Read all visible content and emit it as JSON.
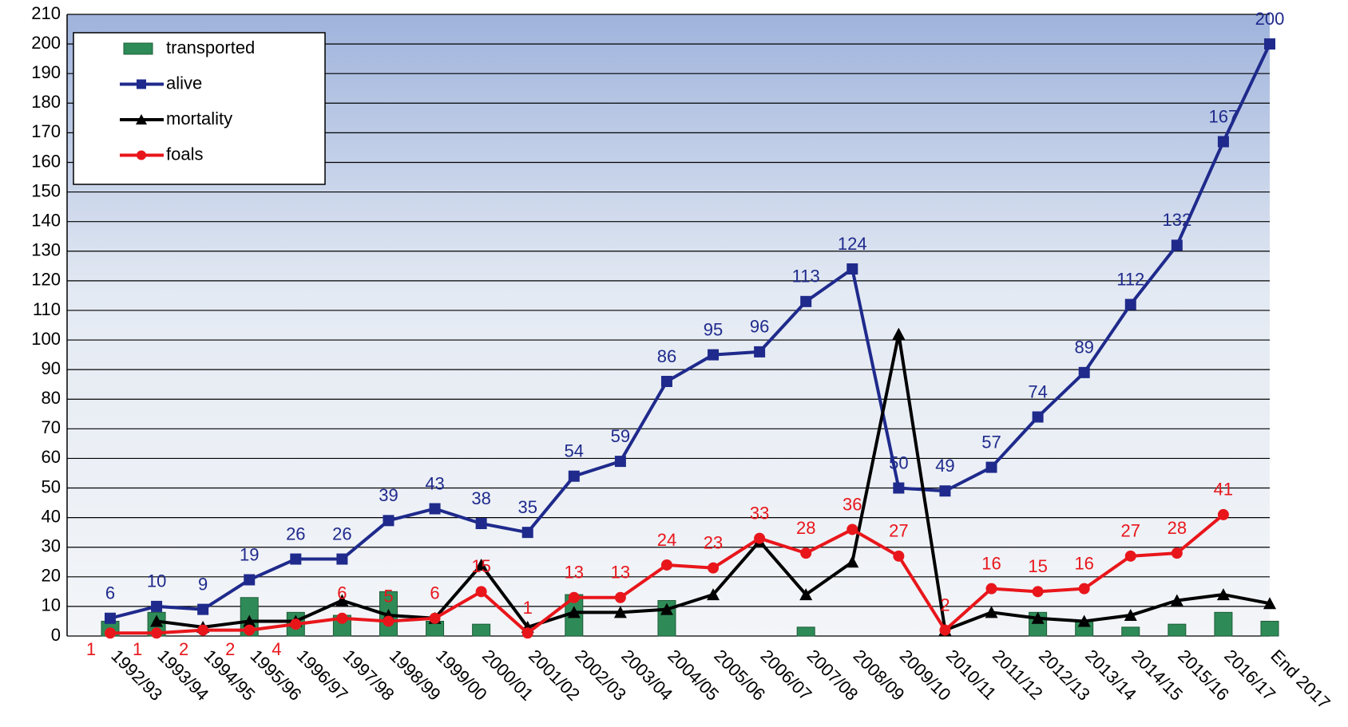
{
  "chart_data": {
    "type": "combo",
    "categories": [
      "1992/93",
      "1993/94",
      "1994/95",
      "1995/96",
      "1996/97",
      "1997/98",
      "1998/99",
      "1999/00",
      "2000/01",
      "2001/02",
      "2002/03",
      "2003/04",
      "2004/05",
      "2005/06",
      "2006/07",
      "2007/08",
      "2008/09",
      "2009/10",
      "2010/11",
      "2011/12",
      "2012/13",
      "2013/14",
      "2014/15",
      "2015/16",
      "2016/17",
      "End 2017"
    ],
    "series": [
      {
        "name": "transported",
        "kind": "bar",
        "color": "#2e8b57",
        "values": [
          5,
          8,
          0,
          13,
          8,
          7,
          15,
          5,
          4,
          0,
          14,
          0,
          12,
          0,
          0,
          3,
          0,
          0,
          0,
          0,
          8,
          5,
          3,
          4,
          8,
          5
        ]
      },
      {
        "name": "alive",
        "kind": "line",
        "marker": "square",
        "color": "#1f2a8c",
        "labels": true,
        "values": [
          6,
          10,
          9,
          19,
          26,
          26,
          39,
          43,
          38,
          35,
          54,
          59,
          86,
          95,
          96,
          113,
          124,
          50,
          49,
          57,
          74,
          89,
          112,
          132,
          167,
          200
        ]
      },
      {
        "name": "mortality",
        "kind": "line",
        "marker": "triangle",
        "color": "#000000",
        "labels": false,
        "values": [
          null,
          5,
          3,
          5,
          5,
          12,
          7,
          6,
          24,
          3,
          8,
          8,
          9,
          14,
          32,
          14,
          25,
          102,
          2,
          8,
          6,
          5,
          7,
          12,
          14,
          11
        ]
      },
      {
        "name": "foals",
        "kind": "line",
        "marker": "circle",
        "color": "#e8161b",
        "labels": true,
        "values": [
          1,
          1,
          2,
          2,
          4,
          6,
          5,
          6,
          15,
          1,
          13,
          13,
          24,
          23,
          33,
          28,
          36,
          27,
          2,
          16,
          15,
          16,
          27,
          28,
          41,
          null
        ]
      }
    ],
    "ylim": [
      0,
      210
    ],
    "yticks": [
      0,
      10,
      20,
      30,
      40,
      50,
      60,
      70,
      80,
      90,
      100,
      110,
      120,
      130,
      140,
      150,
      160,
      170,
      180,
      190,
      200,
      210
    ],
    "grid": true
  }
}
